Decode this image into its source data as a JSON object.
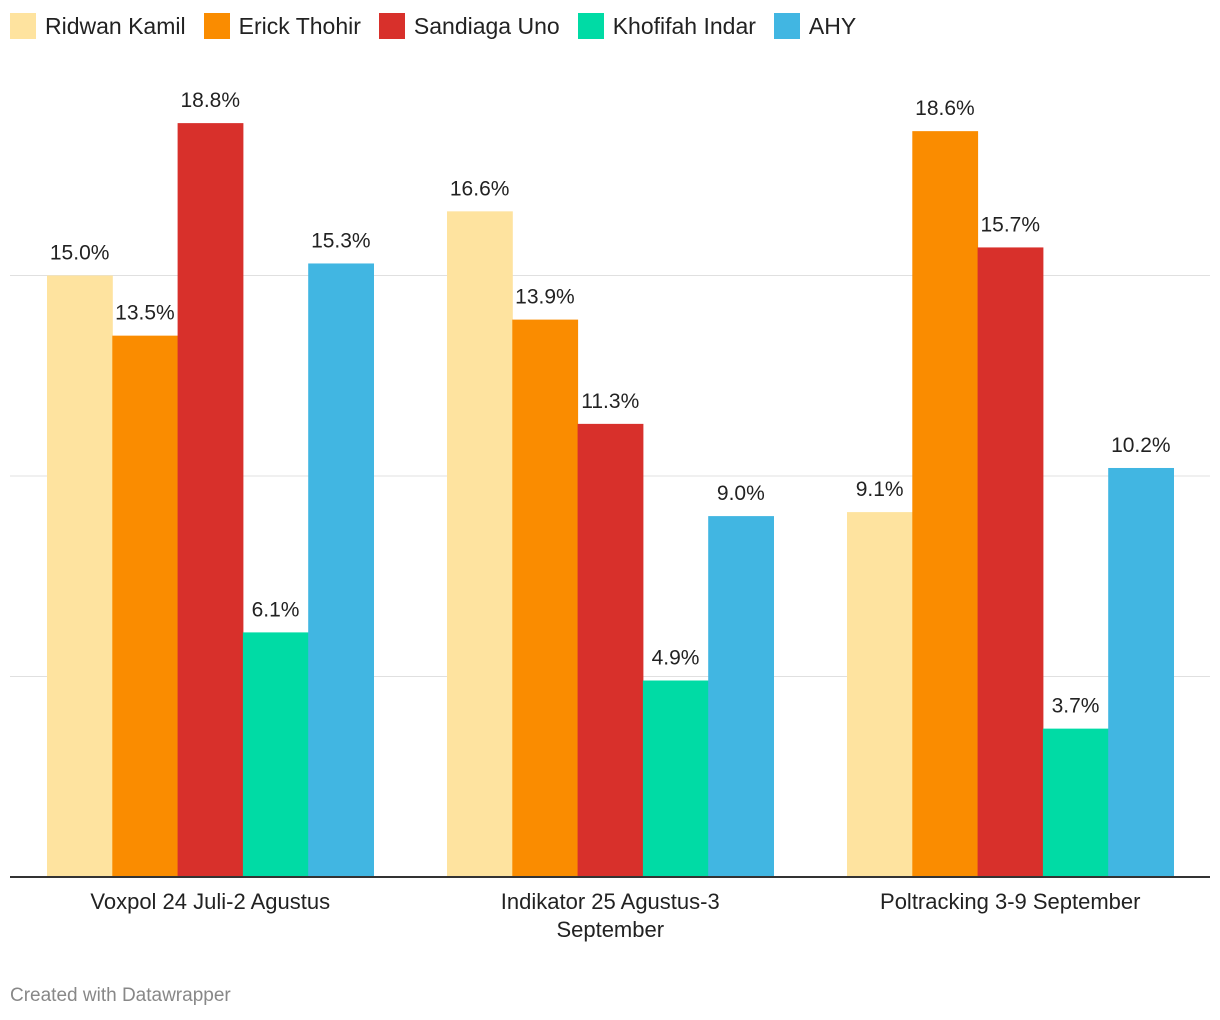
{
  "chart_data": {
    "type": "bar",
    "title": "",
    "xlabel": "",
    "ylabel": "",
    "ylim": [
      0,
      20
    ],
    "gridlines": [
      0,
      5,
      10,
      15
    ],
    "grid": true,
    "legend_position": "top-left",
    "categories": [
      [
        "Voxpol 24 Juli-2 Agustus"
      ],
      [
        "Indikator 25 Agustus-3",
        "September"
      ],
      [
        "Poltracking 3-9 September"
      ]
    ],
    "series": [
      {
        "name": "Ridwan Kamil",
        "color": "#fee39f",
        "values": [
          15.0,
          16.6,
          9.1
        ],
        "labels": [
          "15.0%",
          "16.6%",
          "9.1%"
        ]
      },
      {
        "name": "Erick Thohir",
        "color": "#fa8c00",
        "values": [
          13.5,
          13.9,
          18.6
        ],
        "labels": [
          "13.5%",
          "13.9%",
          "18.6%"
        ]
      },
      {
        "name": "Sandiaga Uno",
        "color": "#d8302b",
        "values": [
          18.8,
          11.3,
          15.7
        ],
        "labels": [
          "18.8%",
          "11.3%",
          "15.7%"
        ]
      },
      {
        "name": "Khofifah Indar",
        "color": "#00dba5",
        "values": [
          6.1,
          4.9,
          3.7
        ],
        "labels": [
          "6.1%",
          "4.9%",
          "3.7%"
        ]
      },
      {
        "name": "AHY",
        "color": "#41b6e2",
        "values": [
          15.3,
          9.0,
          10.2
        ],
        "labels": [
          "15.3%",
          "9.0%",
          "10.2%"
        ]
      }
    ]
  },
  "footer": {
    "credit": "Created with Datawrapper"
  }
}
